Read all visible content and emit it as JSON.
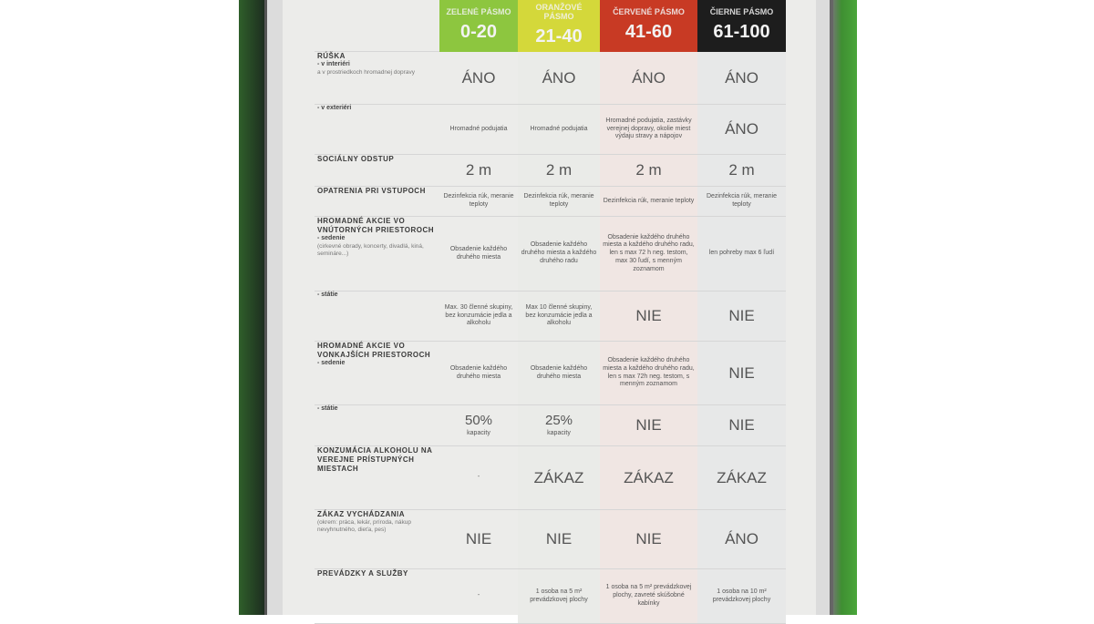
{
  "header": {
    "zones": [
      {
        "name": "ZELENÉ PÁSMO",
        "range": "0-20",
        "color": "#8dc63f"
      },
      {
        "name": "ORANŽOVÉ PÁSMO",
        "range": "21-40",
        "color": "#d4d83a"
      },
      {
        "name": "ČERVENÉ PÁSMO",
        "range": "41-60",
        "color": "#c83a24"
      },
      {
        "name": "ČIERNE PÁSMO",
        "range": "61-100",
        "color": "#1d1d1d"
      }
    ]
  },
  "rows": [
    {
      "title": "RÚŠKA",
      "sub": "- v interiéri",
      "note": "a v prostriedkoch hromadnej dopravy",
      "values": [
        "ÁNO",
        "ÁNO",
        "ÁNO",
        "ÁNO"
      ]
    },
    {
      "title": "",
      "sub": "- v exteriéri",
      "note": "",
      "values": [
        "Hromadné podujatia",
        "Hromadné podujatia",
        "Hromadné podujatia, zastávky verejnej dopravy, okolie miest výdaju stravy a nápojov",
        "ÁNO"
      ]
    },
    {
      "title": "SOCIÁLNY ODSTUP",
      "sub": "",
      "note": "",
      "values": [
        "2 m",
        "2 m",
        "2 m",
        "2 m"
      ]
    },
    {
      "title": "OPATRENIA PRI VSTUPOCH",
      "sub": "",
      "note": "",
      "values": [
        "Dezinfekcia rúk, meranie teploty",
        "Dezinfekcia rúk, meranie teploty",
        "Dezinfekcia rúk, meranie teploty",
        "Dezinfekcia rúk, meranie teploty"
      ]
    },
    {
      "title": "HROMADNÉ AKCIE VO VNÚTORNÝCH PRIESTOROCH",
      "sub": "- sedenie",
      "note": "(cirkevné obrady, koncerty, divadlá, kiná, semináre...)",
      "values": [
        "Obsadenie každého druhého miesta",
        "Obsadenie každého druhého miesta a každého druhého radu",
        "Obsadenie každého druhého miesta a každého druhého radu, len s max 72 h neg. testom, max 30 ľudí, s menným zoznamom",
        "len pohreby max 6 ľudí"
      ]
    },
    {
      "title": "",
      "sub": "- státie",
      "note": "",
      "values": [
        "Max. 30 členné skupiny, bez konzumácie jedla a alkoholu",
        "Max 10 členné skupiny, bez konzumácie jedla a alkoholu",
        "NIE",
        "NIE"
      ]
    },
    {
      "title": "HROMADNÉ AKCIE VO VONKAJŠÍCH PRIESTOROCH",
      "sub": "- sedenie",
      "note": "",
      "values": [
        "Obsadenie každého druhého miesta",
        "Obsadenie každého druhého miesta",
        "Obsadenie každého druhého miesta a každého druhého radu, len s max 72h neg. testom, s menným zoznamom",
        "NIE"
      ]
    },
    {
      "title": "",
      "sub": "- státie",
      "note": "",
      "values": [
        "50%|kapacity",
        "25%|kapacity",
        "NIE",
        "NIE"
      ]
    },
    {
      "title": "KONZUMÁCIA ALKOHOLU NA VEREJNE PRÍSTUPNÝCH MIESTACH",
      "sub": "",
      "note": "",
      "values": [
        "-",
        "ZÁKAZ",
        "ZÁKAZ",
        "ZÁKAZ"
      ]
    },
    {
      "title": "ZÁKAZ VYCHÁDZANIA",
      "sub": "",
      "note": "(okrem: práca, lekár, príroda, nákup nevyhnutného, dieťa, pes)",
      "values": [
        "NIE",
        "NIE",
        "NIE",
        "ÁNO"
      ]
    },
    {
      "title": "PREVÁDZKY A SLUŽBY",
      "sub": "",
      "note": "",
      "values": [
        "-",
        "1 osoba na 5 m² prevádzkovej plochy",
        "1 osoba na 5 m² prevádzkovej plochy, zavreté skúšobné kabínky",
        "1 osoba na 10 m² prevádzkovej plochy"
      ]
    }
  ]
}
